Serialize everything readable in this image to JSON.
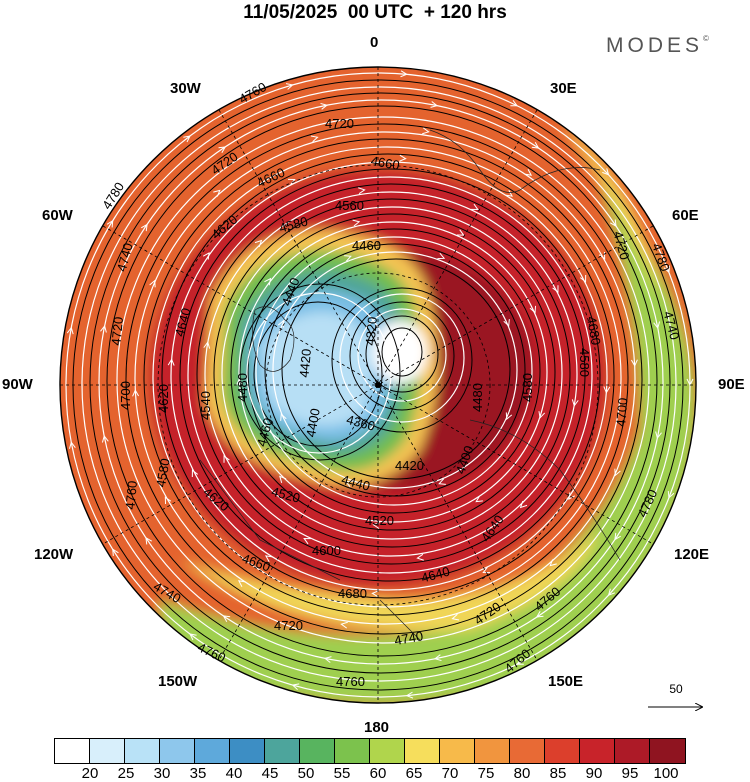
{
  "title": "11/05/2025  00 UTC  + 120 hrs",
  "logo": "MODES",
  "logo_mark": "©",
  "map": {
    "projection": "north polar stereographic",
    "field": "500 hPa geopotential height (m) and wind",
    "longitude_labels": [
      {
        "text": "0",
        "lon": 0
      },
      {
        "text": "30E",
        "lon": 30
      },
      {
        "text": "60E",
        "lon": 60
      },
      {
        "text": "90E",
        "lon": 90
      },
      {
        "text": "120E",
        "lon": 120
      },
      {
        "text": "150E",
        "lon": 150
      },
      {
        "text": "180",
        "lon": 180
      },
      {
        "text": "150W",
        "lon": -150
      },
      {
        "text": "120W",
        "lon": -120
      },
      {
        "text": "90W",
        "lon": -90
      },
      {
        "text": "60W",
        "lon": -60
      },
      {
        "text": "30W",
        "lon": -30
      }
    ],
    "contour_labels": [
      "4780",
      "4760",
      "4740",
      "4720",
      "4700",
      "4680",
      "4660",
      "4640",
      "4620",
      "4600",
      "4580",
      "4560",
      "4540",
      "4520",
      "4500",
      "4480",
      "4460",
      "4440",
      "4420",
      "4400",
      "4380",
      "4360",
      "4340",
      "4320"
    ],
    "reference_vector": "50"
  },
  "colorbar": {
    "colors": [
      "#ffffff",
      "#d8effb",
      "#b9e2f7",
      "#8ec7ec",
      "#5ea9db",
      "#3d8ec4",
      "#4da59c",
      "#58b45f",
      "#7cc24d",
      "#b0d54c",
      "#f6de5c",
      "#f7ba4a",
      "#f1953e",
      "#e86a35",
      "#dc3f2c",
      "#c8232a",
      "#ad1a27",
      "#8f1420"
    ],
    "tick_labels": [
      "20",
      "25",
      "30",
      "35",
      "40",
      "45",
      "50",
      "55",
      "60",
      "65",
      "70",
      "75",
      "80",
      "85",
      "90",
      "95",
      "100"
    ]
  }
}
